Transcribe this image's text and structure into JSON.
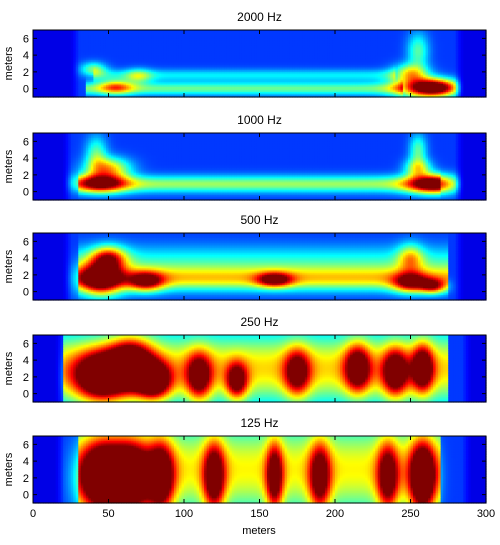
{
  "chart_data": {
    "type": "heatmap",
    "colormap": "jet",
    "shared_xlabel": "meters",
    "xlim": [
      0,
      300
    ],
    "x_ticks": [
      0,
      50,
      100,
      150,
      200,
      250,
      300
    ],
    "panels": [
      {
        "title": "2000 Hz",
        "ylabel": "meters",
        "ylim": [
          -1,
          7
        ],
        "y_ticks": [
          0,
          2,
          4,
          6
        ],
        "data_xrange": [
          25,
          285
        ],
        "blobs": [
          {
            "x": 258,
            "y": 0.1,
            "sx": 12,
            "sy": 0.8,
            "v": 0.72
          },
          {
            "x": 270,
            "y": 0.1,
            "sx": 10,
            "sy": 0.7,
            "v": 0.55
          },
          {
            "x": 250,
            "y": 1.8,
            "sx": 8,
            "sy": 0.8,
            "v": 0.45
          },
          {
            "x": 255,
            "y": 4.5,
            "sx": 5,
            "sy": 1.5,
            "v": 0.28
          },
          {
            "x": 55,
            "y": 0.2,
            "sx": 8,
            "sy": 0.6,
            "v": 0.38
          },
          {
            "x": 40,
            "y": 2.3,
            "sx": 6,
            "sy": 0.6,
            "v": 0.32
          },
          {
            "x": 70,
            "y": 1.5,
            "sx": 6,
            "sy": 0.6,
            "v": 0.25
          }
        ],
        "bands": [
          {
            "x0": 35,
            "x1": 245,
            "y": 0.0,
            "sy": 0.55,
            "v": 0.3
          },
          {
            "x0": 40,
            "x1": 240,
            "y": 1.6,
            "sy": 0.5,
            "v": 0.18
          }
        ]
      },
      {
        "title": "1000 Hz",
        "ylabel": "meters",
        "ylim": [
          -1,
          7
        ],
        "y_ticks": [
          0,
          2,
          4,
          6
        ],
        "data_xrange": [
          20,
          285
        ],
        "blobs": [
          {
            "x": 45,
            "y": 1.0,
            "sx": 12,
            "sy": 0.8,
            "v": 0.62
          },
          {
            "x": 50,
            "y": 2.8,
            "sx": 10,
            "sy": 0.9,
            "v": 0.48
          },
          {
            "x": 42,
            "y": 4.5,
            "sx": 5,
            "sy": 1.5,
            "v": 0.28
          },
          {
            "x": 265,
            "y": 0.9,
            "sx": 12,
            "sy": 0.8,
            "v": 0.72
          },
          {
            "x": 255,
            "y": 2.8,
            "sx": 6,
            "sy": 0.8,
            "v": 0.4
          },
          {
            "x": 255,
            "y": 5.0,
            "sx": 4,
            "sy": 1.3,
            "v": 0.28
          }
        ],
        "bands": [
          {
            "x0": 30,
            "x1": 270,
            "y": 0.9,
            "sy": 0.7,
            "v": 0.35
          }
        ]
      },
      {
        "title": "500 Hz",
        "ylabel": "meters",
        "ylim": [
          -1,
          7
        ],
        "y_ticks": [
          0,
          2,
          4,
          6
        ],
        "data_xrange": [
          20,
          285
        ],
        "blobs": [
          {
            "x": 45,
            "y": 1.5,
            "sx": 10,
            "sy": 1.4,
            "v": 0.72
          },
          {
            "x": 50,
            "y": 4.0,
            "sx": 8,
            "sy": 1.0,
            "v": 0.55
          },
          {
            "x": 75,
            "y": 1.2,
            "sx": 8,
            "sy": 0.8,
            "v": 0.55
          },
          {
            "x": 160,
            "y": 1.4,
            "sx": 8,
            "sy": 0.6,
            "v": 0.55
          },
          {
            "x": 250,
            "y": 1.0,
            "sx": 8,
            "sy": 0.8,
            "v": 0.55
          },
          {
            "x": 265,
            "y": 0.6,
            "sx": 6,
            "sy": 0.6,
            "v": 0.5
          },
          {
            "x": 250,
            "y": 4.0,
            "sx": 6,
            "sy": 1.2,
            "v": 0.35
          }
        ],
        "bands": [
          {
            "x0": 30,
            "x1": 275,
            "y": 1.5,
            "sy": 1.0,
            "v": 0.42
          },
          {
            "x0": 30,
            "x1": 275,
            "y": 3.5,
            "sy": 1.4,
            "v": 0.22
          }
        ]
      },
      {
        "title": "250 Hz",
        "ylabel": "meters",
        "ylim": [
          -1,
          7
        ],
        "y_ticks": [
          0,
          2,
          4,
          6
        ],
        "data_xrange": [
          15,
          290
        ],
        "blobs": [
          {
            "x": 45,
            "y": 2.0,
            "sx": 12,
            "sy": 2.0,
            "v": 0.88
          },
          {
            "x": 65,
            "y": 3.5,
            "sx": 10,
            "sy": 2.0,
            "v": 0.85
          },
          {
            "x": 80,
            "y": 1.5,
            "sx": 8,
            "sy": 1.5,
            "v": 0.8
          },
          {
            "x": 110,
            "y": 2.0,
            "sx": 6,
            "sy": 2.0,
            "v": 0.62
          },
          {
            "x": 135,
            "y": 1.5,
            "sx": 5,
            "sy": 1.5,
            "v": 0.62
          },
          {
            "x": 175,
            "y": 2.5,
            "sx": 6,
            "sy": 2.0,
            "v": 0.58
          },
          {
            "x": 215,
            "y": 3.0,
            "sx": 6,
            "sy": 2.0,
            "v": 0.66
          },
          {
            "x": 240,
            "y": 2.5,
            "sx": 6,
            "sy": 2.0,
            "v": 0.68
          },
          {
            "x": 258,
            "y": 3.0,
            "sx": 5,
            "sy": 2.0,
            "v": 0.7
          }
        ],
        "bands": [
          {
            "x0": 20,
            "x1": 275,
            "y": 3.0,
            "sy": 3.0,
            "v": 0.48
          }
        ]
      },
      {
        "title": "125 Hz",
        "ylabel": "meters",
        "ylim": [
          -1,
          7
        ],
        "y_ticks": [
          0,
          2,
          4,
          6
        ],
        "data_xrange": [
          15,
          290
        ],
        "blobs": [
          {
            "x": 45,
            "y": 2.0,
            "sx": 10,
            "sy": 3.0,
            "v": 0.88
          },
          {
            "x": 65,
            "y": 2.0,
            "sx": 10,
            "sy": 3.0,
            "v": 0.88
          },
          {
            "x": 85,
            "y": 2.0,
            "sx": 6,
            "sy": 3.0,
            "v": 0.7
          },
          {
            "x": 120,
            "y": 2.0,
            "sx": 5,
            "sy": 3.0,
            "v": 0.68
          },
          {
            "x": 160,
            "y": 2.0,
            "sx": 4,
            "sy": 3.0,
            "v": 0.62
          },
          {
            "x": 190,
            "y": 2.0,
            "sx": 5,
            "sy": 3.0,
            "v": 0.62
          },
          {
            "x": 235,
            "y": 2.0,
            "sx": 5,
            "sy": 3.0,
            "v": 0.62
          },
          {
            "x": 258,
            "y": 2.0,
            "sx": 6,
            "sy": 3.0,
            "v": 0.9
          }
        ],
        "bands": [
          {
            "x0": 30,
            "x1": 270,
            "y": 3.0,
            "sy": 4.0,
            "v": 0.45
          }
        ]
      }
    ]
  }
}
